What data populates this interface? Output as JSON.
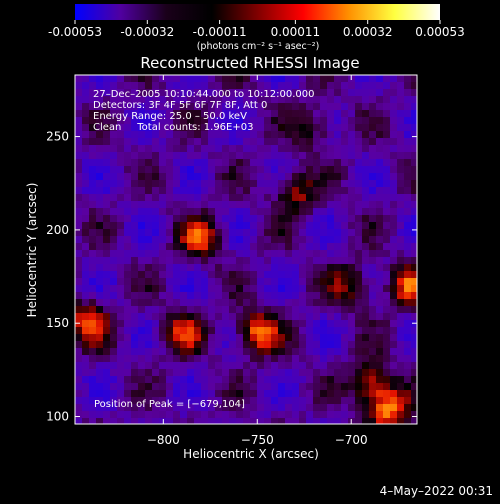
{
  "colorbar": {
    "ticks": [
      "-0.00053",
      "-0.00032",
      "-0.00011",
      "0.00011",
      "0.00032",
      "0.00053"
    ],
    "tick_values": [
      -0.00053,
      -0.00032,
      -0.00011,
      0.00011,
      0.00032,
      0.00053
    ],
    "range": [
      -0.00053,
      0.00053
    ],
    "units_label": "(photons cm⁻² s⁻¹ asec⁻²)",
    "colormap": [
      "#0000ff",
      "#5000a0",
      "#1a001a",
      "#000000",
      "#800000",
      "#ff0000",
      "#ff9000",
      "#ffff40",
      "#ffffff"
    ]
  },
  "chart_data": {
    "type": "heatmap",
    "title": "Reconstructed RHESSI Image",
    "xlabel": "Heliocentric X (arcsec)",
    "ylabel": "Heliocentric Y (arcsec)",
    "xlim": [
      -847,
      -665
    ],
    "ylim": [
      96,
      283
    ],
    "xticks": [
      -800,
      -750,
      -700
    ],
    "xtick_labels": [
      "−800",
      "−750",
      "−700"
    ],
    "yticks": [
      100,
      150,
      200,
      250
    ],
    "ytick_labels": [
      "100",
      "150",
      "200",
      "250"
    ],
    "annotation_lines": [
      "27–Dec–2005 10:10:44.000 to 10:12:00.000",
      "Detectors: 3F 4F 5F 6F 7F 8F, Att 0",
      "Energy Range: 25.0 – 50.0 keV",
      "Clean     Total counts: 1.96E+03"
    ],
    "peak_label": "Position of Peak = [−679,104]",
    "peak_position": [
      -679,
      104
    ],
    "bright_regions": [
      {
        "x": -750,
        "y": 145,
        "level": 0.00053
      },
      {
        "x": -690,
        "y": 118,
        "level": 0.00045
      },
      {
        "x": -780,
        "y": 195,
        "level": 0.0004
      },
      {
        "x": -840,
        "y": 150,
        "level": 0.00045
      },
      {
        "x": -790,
        "y": 145,
        "level": 0.00035
      },
      {
        "x": -730,
        "y": 220,
        "level": 0.00035
      },
      {
        "x": -670,
        "y": 170,
        "level": 0.0004
      },
      {
        "x": -680,
        "y": 104,
        "level": 0.00053
      },
      {
        "x": -700,
        "y": 170,
        "level": 0.0003
      },
      {
        "x": -720,
        "y": 255,
        "level": 0.00025
      }
    ]
  },
  "footer": {
    "date": "4–May–2022 00:31"
  }
}
